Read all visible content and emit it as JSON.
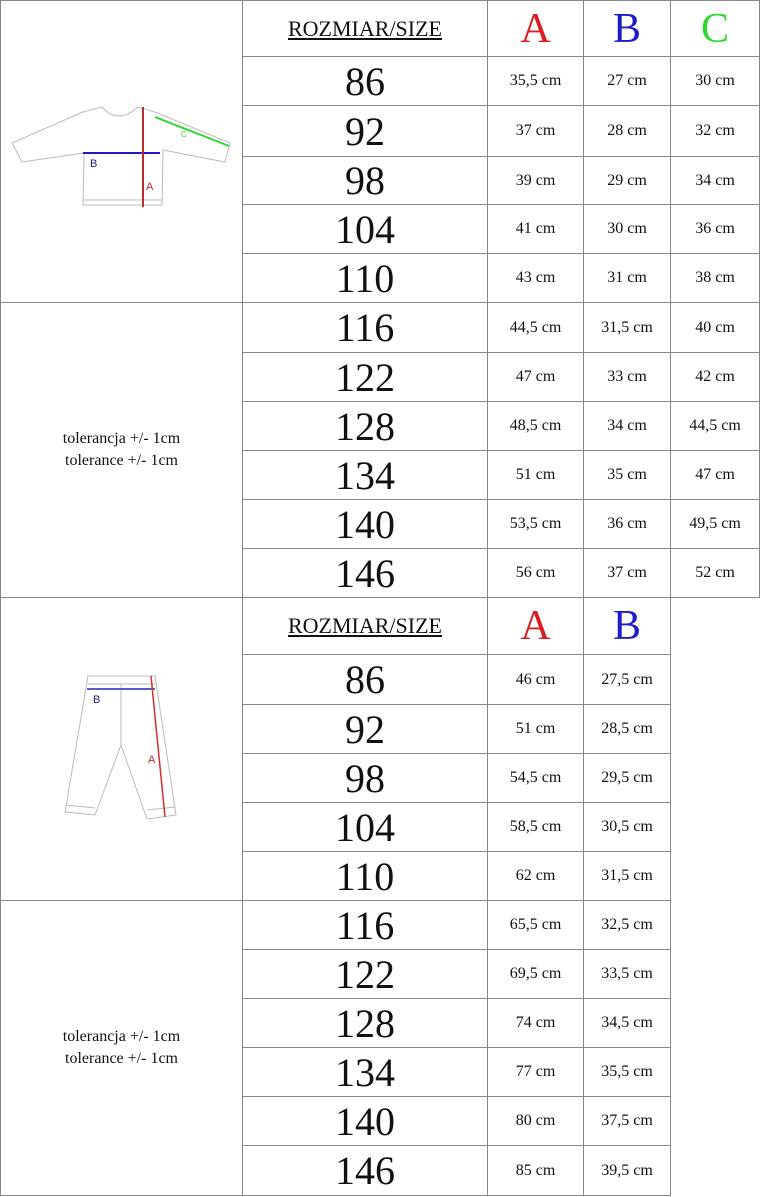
{
  "colors": {
    "A": "#d81e1e",
    "B": "#1c1cc8",
    "C": "#2ed82e"
  },
  "top_table": {
    "header": "ROZMIAR/SIZE",
    "columns": [
      "A",
      "B",
      "C"
    ],
    "tolerance": [
      "tolerancja +/- 1cm",
      "tolerance +/- 1cm"
    ],
    "diagram_labels": {
      "A": "A",
      "B": "B",
      "C": "C"
    },
    "rows": [
      {
        "size": "86",
        "A": "35,5 cm",
        "B": "27 cm",
        "C": "30 cm"
      },
      {
        "size": "92",
        "A": "37 cm",
        "B": "28 cm",
        "C": "32 cm"
      },
      {
        "size": "98",
        "A": "39 cm",
        "B": "29 cm",
        "C": "34 cm"
      },
      {
        "size": "104",
        "A": "41 cm",
        "B": "30 cm",
        "C": "36 cm"
      },
      {
        "size": "110",
        "A": "43 cm",
        "B": "31 cm",
        "C": "38 cm"
      },
      {
        "size": "116",
        "A": "44,5 cm",
        "B": "31,5 cm",
        "C": "40 cm"
      },
      {
        "size": "122",
        "A": "47 cm",
        "B": "33 cm",
        "C": "42 cm"
      },
      {
        "size": "128",
        "A": "48,5 cm",
        "B": "34 cm",
        "C": "44,5 cm"
      },
      {
        "size": "134",
        "A": "51 cm",
        "B": "35 cm",
        "C": "47 cm"
      },
      {
        "size": "140",
        "A": "53,5 cm",
        "B": "36 cm",
        "C": "49,5 cm"
      },
      {
        "size": "146",
        "A": "56 cm",
        "B": "37 cm",
        "C": "52 cm"
      }
    ]
  },
  "bottom_table": {
    "header": "ROZMIAR/SIZE",
    "columns": [
      "A",
      "B"
    ],
    "tolerance": [
      "tolerancja +/- 1cm",
      "tolerance +/- 1cm"
    ],
    "diagram_labels": {
      "A": "A",
      "B": "B"
    },
    "rows": [
      {
        "size": "86",
        "A": "46 cm",
        "B": "27,5 cm"
      },
      {
        "size": "92",
        "A": "51 cm",
        "B": "28,5 cm"
      },
      {
        "size": "98",
        "A": "54,5 cm",
        "B": "29,5 cm"
      },
      {
        "size": "104",
        "A": "58,5 cm",
        "B": "30,5 cm"
      },
      {
        "size": "110",
        "A": "62 cm",
        "B": "31,5 cm"
      },
      {
        "size": "116",
        "A": "65,5 cm",
        "B": "32,5 cm"
      },
      {
        "size": "122",
        "A": "69,5 cm",
        "B": "33,5 cm"
      },
      {
        "size": "128",
        "A": "74 cm",
        "B": "34,5 cm"
      },
      {
        "size": "134",
        "A": "77 cm",
        "B": "35,5 cm"
      },
      {
        "size": "140",
        "A": "80 cm",
        "B": "37,5 cm"
      },
      {
        "size": "146",
        "A": "85 cm",
        "B": "39,5 cm"
      }
    ]
  }
}
